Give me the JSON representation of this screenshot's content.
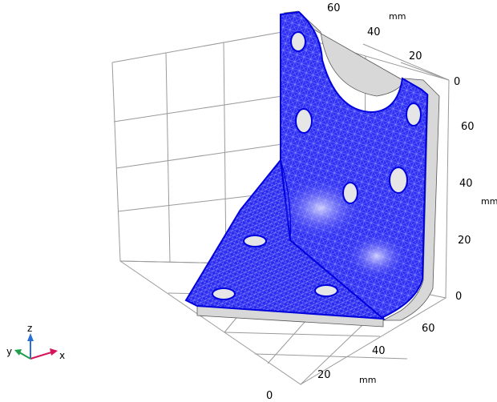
{
  "viewer": {
    "background": "#ffffff",
    "grid_color": "#9a9a9a",
    "mesh_color": "#1a1aff",
    "edge_color": "#0000dd",
    "face_color": "#d8d8d8"
  },
  "axes": {
    "top": {
      "ticks": [
        "60",
        "40",
        "20",
        "0"
      ],
      "unit": "mm"
    },
    "right": {
      "ticks": [
        "60",
        "40",
        "20",
        "0"
      ],
      "unit": "mm"
    },
    "bottom": {
      "ticks": [
        "60",
        "40",
        "20",
        "0"
      ],
      "unit": "mm"
    }
  },
  "triad": {
    "x_label": "x",
    "y_label": "y",
    "z_label": "z",
    "x_color": "#d4145a",
    "y_color": "#1e9e4a",
    "z_color": "#2a6fd6"
  }
}
